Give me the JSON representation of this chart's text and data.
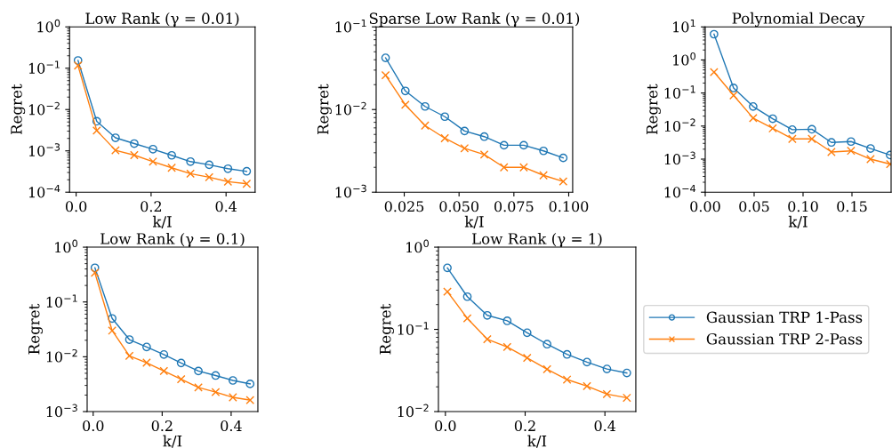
{
  "chart_data": [
    {
      "type": "line",
      "title": "Low Rank (γ = 0.01)",
      "xlabel": "k/I",
      "ylabel": "Regret",
      "log": "y",
      "grid": false,
      "legend": false,
      "x": [
        0.005,
        0.055,
        0.105,
        0.155,
        0.205,
        0.255,
        0.305,
        0.355,
        0.405,
        0.455
      ],
      "xlim": [
        -0.0175,
        0.4775
      ],
      "xticks": [
        {
          "value": 0,
          "label": "0.0"
        },
        0.2,
        0.4
      ],
      "ylim": [
        0.0001,
        1
      ],
      "yticks": [
        {
          "value": 0.0001,
          "label": "10$^{−4}$"
        },
        {
          "value": 0.001,
          "label": "10$^{−3}$"
        },
        {
          "value": 0.01,
          "label": "10$^{−2}$"
        },
        {
          "value": 0.1,
          "label": "10$^{−1}$"
        },
        {
          "value": 1,
          "label": "10$^{0}$"
        }
      ],
      "series": [
        {
          "color": "#1f77b4",
          "marker": "circle",
          "values": [
            0.154,
            0.0052,
            0.00207,
            0.0015,
            0.0011,
            0.00078,
            0.00055,
            0.00046,
            0.00037,
            0.00032
          ]
        },
        {
          "color": "#ff7f0e",
          "marker": "cross",
          "values": [
            0.116,
            0.0031,
            0.00103,
            0.00079,
            0.00055,
            0.00039,
            0.00028,
            0.00023,
            0.00018,
            0.00016
          ]
        }
      ]
    },
    {
      "type": "line",
      "title": "Sparse Low Rank (γ = 0.01)",
      "xlabel": "k/I",
      "ylabel": "Regret",
      "log": "y",
      "grid": false,
      "legend": false,
      "x": [
        0.0165,
        0.0255,
        0.0345,
        0.0435,
        0.0525,
        0.0615,
        0.0705,
        0.0795,
        0.0885,
        0.0975
      ],
      "xlim": [
        0.0122,
        0.1018
      ],
      "xticks": [
        0.025,
        {
          "value": 0.05,
          "label": "0.050"
        },
        0.075,
        {
          "value": 0.1,
          "label": "0.100"
        }
      ],
      "ylim": [
        0.001,
        0.1
      ],
      "yticks": [
        {
          "value": 0.001,
          "label": "10$^{−3}$"
        },
        {
          "value": 0.01,
          "label": "10$^{−2}$"
        },
        {
          "value": 0.1,
          "label": "10$^{−1}$"
        }
      ],
      "series": [
        {
          "color": "#1f77b4",
          "marker": "circle",
          "values": [
            0.0422,
            0.0168,
            0.0109,
            0.0082,
            0.0055,
            0.0047,
            0.0037,
            0.0037,
            0.00316,
            0.0026
          ]
        },
        {
          "color": "#ff7f0e",
          "marker": "cross",
          "values": [
            0.026,
            0.0114,
            0.0064,
            0.0045,
            0.0034,
            0.00285,
            0.002,
            0.002,
            0.0016,
            0.00135
          ]
        }
      ]
    },
    {
      "type": "line",
      "title": "Polynomial Decay",
      "xlabel": "k/I",
      "ylabel": "Regret",
      "log": "y",
      "grid": false,
      "legend": false,
      "x": [
        0.009,
        0.029,
        0.049,
        0.069,
        0.089,
        0.109,
        0.129,
        0.149,
        0.169,
        0.189
      ],
      "xlim": [
        0,
        0.19
      ],
      "xticks": [
        {
          "value": 0,
          "label": "0.00"
        },
        0.05,
        {
          "value": 0.1,
          "label": "0.10"
        },
        0.15
      ],
      "ylim": [
        0.0001,
        10
      ],
      "yticks": [
        {
          "value": 0.0001,
          "label": "10$^{−4}$"
        },
        {
          "value": 0.001,
          "label": "10$^{−3}$"
        },
        {
          "value": 0.01,
          "label": "10$^{−2}$"
        },
        {
          "value": 0.1,
          "label": "10$^{−1}$"
        },
        {
          "value": 1,
          "label": "10$^{0}$"
        },
        {
          "value": 10,
          "label": "10$^{1}$"
        }
      ],
      "series": [
        {
          "color": "#1f77b4",
          "marker": "circle",
          "values": [
            6.0,
            0.142,
            0.039,
            0.0167,
            0.0078,
            0.008,
            0.0032,
            0.0034,
            0.0021,
            0.00133
          ]
        },
        {
          "color": "#ff7f0e",
          "marker": "cross",
          "values": [
            0.43,
            0.085,
            0.0174,
            0.0085,
            0.0041,
            0.0041,
            0.00164,
            0.00178,
            0.001,
            0.00071
          ]
        }
      ]
    },
    {
      "type": "line",
      "title": "Low Rank (γ = 0.1)",
      "xlabel": "k/I",
      "ylabel": "Regret",
      "log": "y",
      "grid": false,
      "legend": false,
      "x": [
        0.005,
        0.055,
        0.105,
        0.155,
        0.205,
        0.255,
        0.305,
        0.355,
        0.405,
        0.455
      ],
      "xlim": [
        -0.0175,
        0.4775
      ],
      "xticks": [
        {
          "value": 0,
          "label": "0.0"
        },
        0.2,
        0.4
      ],
      "ylim": [
        0.001,
        1
      ],
      "yticks": [
        {
          "value": 0.001,
          "label": "10$^{−3}$"
        },
        {
          "value": 0.01,
          "label": "10$^{−2}$"
        },
        {
          "value": 0.1,
          "label": "10$^{−1}$"
        },
        {
          "value": 1,
          "label": "10$^{0}$"
        }
      ],
      "series": [
        {
          "color": "#1f77b4",
          "marker": "circle",
          "values": [
            0.42,
            0.05,
            0.0206,
            0.0151,
            0.011,
            0.0077,
            0.0055,
            0.00455,
            0.0037,
            0.0032
          ]
        },
        {
          "color": "#ff7f0e",
          "marker": "cross",
          "values": [
            0.34,
            0.03,
            0.0104,
            0.0078,
            0.0055,
            0.0039,
            0.00275,
            0.00226,
            0.00182,
            0.00162
          ]
        }
      ]
    },
    {
      "type": "line",
      "title": "Low Rank (γ = 1)",
      "xlabel": "k/I",
      "ylabel": "Regret",
      "log": "y",
      "grid": false,
      "legend": "right",
      "x": [
        0.005,
        0.055,
        0.105,
        0.155,
        0.205,
        0.255,
        0.305,
        0.355,
        0.405,
        0.455
      ],
      "xlim": [
        -0.0175,
        0.4775
      ],
      "xticks": [
        {
          "value": 0,
          "label": "0.0"
        },
        0.2,
        0.4
      ],
      "ylim": [
        0.01,
        1
      ],
      "yticks": [
        {
          "value": 0.01,
          "label": "10$^{−2}$"
        },
        {
          "value": 0.1,
          "label": "10$^{−1}$"
        },
        {
          "value": 1,
          "label": "10$^{0}$"
        }
      ],
      "series": [
        {
          "name": "Gaussian TRP 1-Pass",
          "color": "#1f77b4",
          "marker": "circle",
          "values": [
            0.56,
            0.25,
            0.148,
            0.127,
            0.091,
            0.066,
            0.0496,
            0.04,
            0.033,
            0.0295
          ]
        },
        {
          "name": "Gaussian TRP 2-Pass",
          "color": "#ff7f0e",
          "marker": "cross",
          "values": [
            0.288,
            0.136,
            0.076,
            0.061,
            0.045,
            0.0327,
            0.0245,
            0.0204,
            0.0163,
            0.0147
          ]
        }
      ]
    }
  ]
}
